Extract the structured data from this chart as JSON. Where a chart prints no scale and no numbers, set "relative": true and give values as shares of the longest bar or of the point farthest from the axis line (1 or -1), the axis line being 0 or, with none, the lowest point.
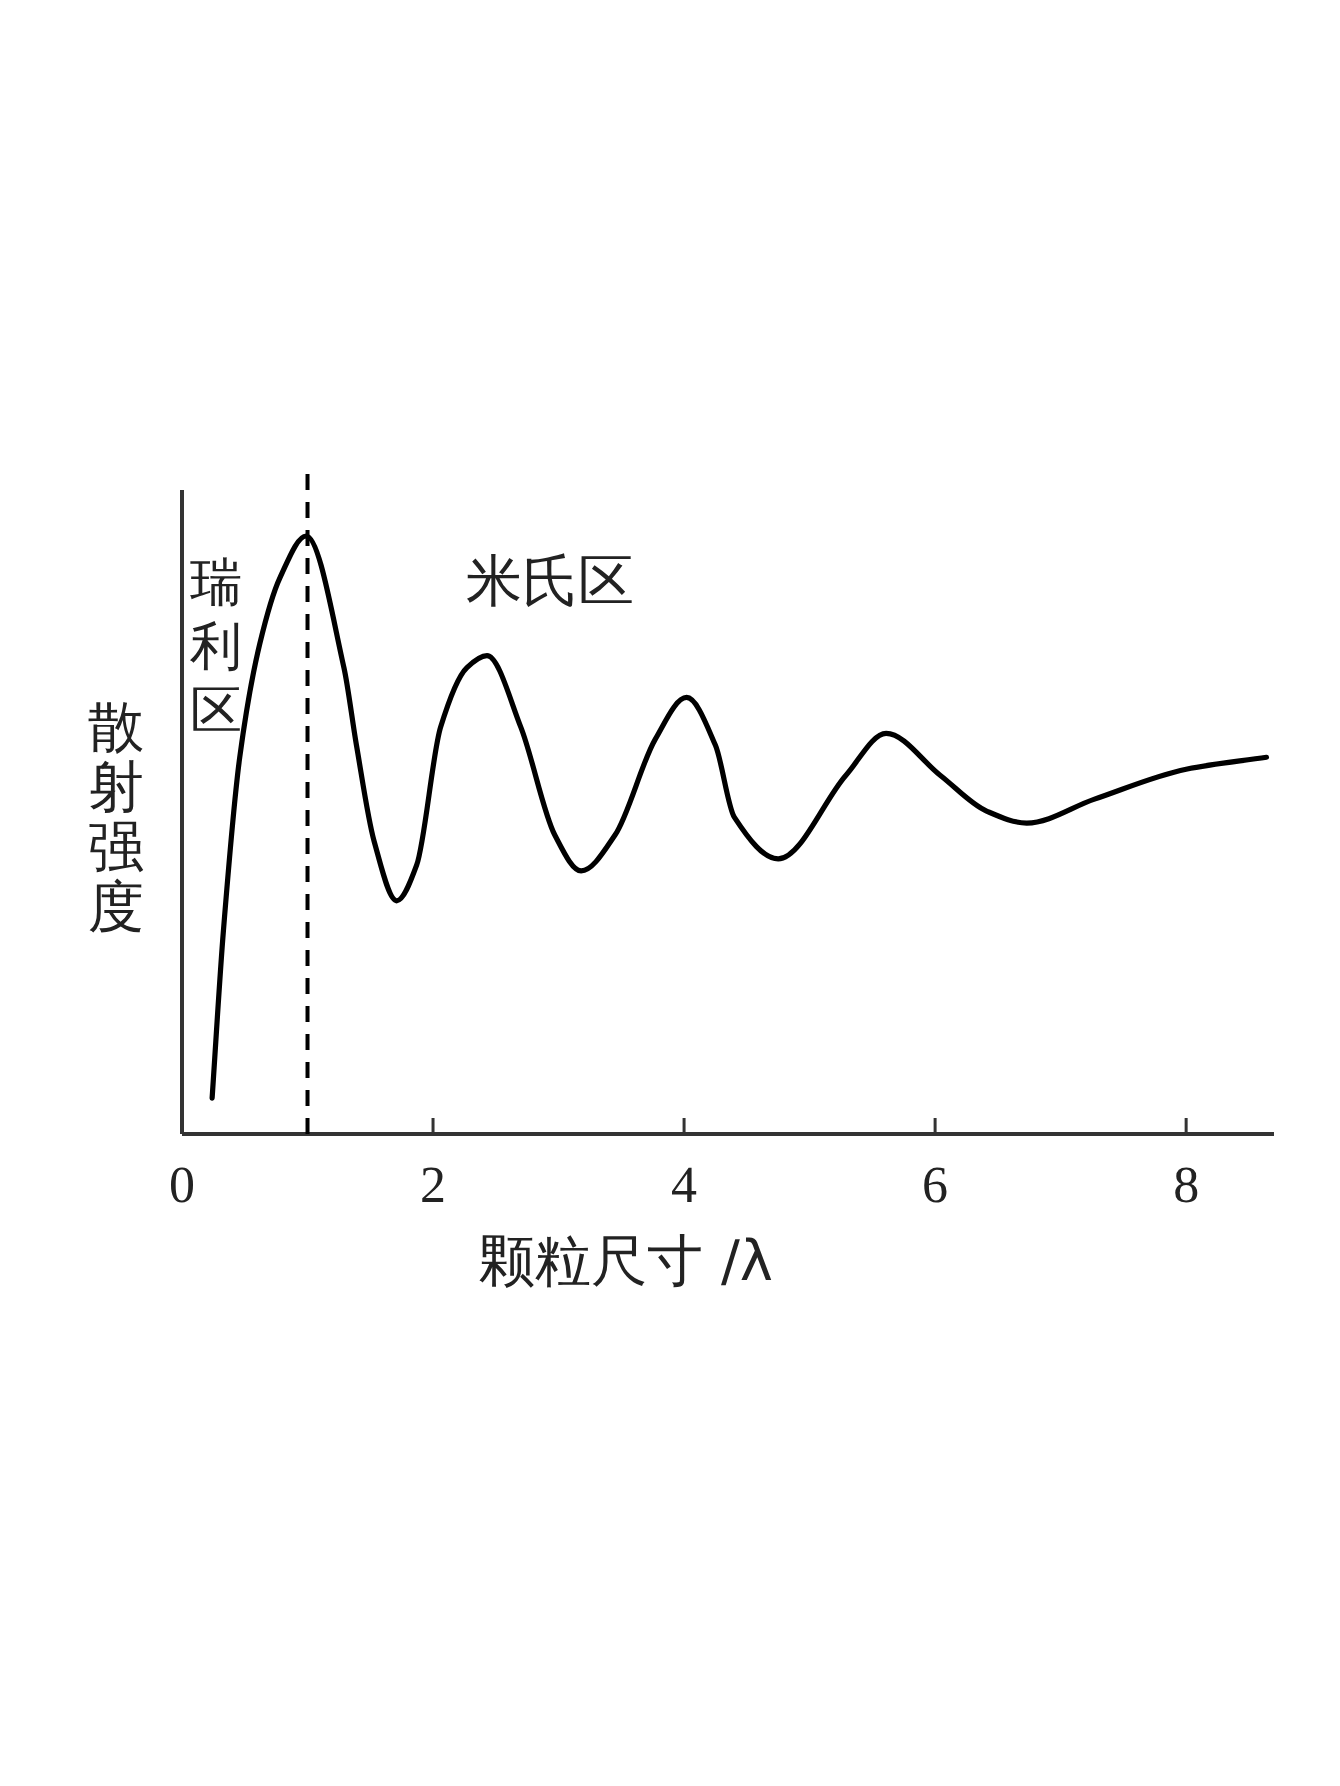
{
  "chart_data": {
    "type": "line",
    "relative": true,
    "ylabel": "散射强度",
    "xlabel": "颗粒尺寸 /λ",
    "xlim": [
      0,
      8.7
    ],
    "xticks": [
      0,
      2,
      4,
      6,
      8
    ],
    "annotations": [
      "瑞利区",
      "米氏区"
    ],
    "ref_lines": [
      {
        "axis": "x",
        "value": 1,
        "line_style": "dashed",
        "color": "#000000"
      }
    ],
    "marker": "none",
    "line_style": "solid",
    "series": [
      {
        "color": "#000000",
        "x": [
          0.24,
          0.33,
          0.46,
          0.62,
          0.78,
          0.99,
          1.29,
          1.39,
          1.53,
          1.71,
          1.87,
          2.06,
          2.27,
          2.43,
          2.7,
          2.97,
          3.18,
          3.45,
          3.77,
          4.02,
          4.25,
          4.4,
          4.75,
          5.29,
          5.61,
          6.04,
          6.41,
          6.73,
          7.27,
          8.0,
          8.64
        ],
        "values": [
          0.06,
          0.34,
          0.63,
          0.82,
          0.93,
          1.0,
          0.78,
          0.65,
          0.49,
          0.39,
          0.45,
          0.68,
          0.78,
          0.8,
          0.68,
          0.5,
          0.44,
          0.5,
          0.66,
          0.73,
          0.65,
          0.53,
          0.46,
          0.6,
          0.67,
          0.6,
          0.54,
          0.52,
          0.56,
          0.61,
          0.63
        ]
      }
    ]
  }
}
